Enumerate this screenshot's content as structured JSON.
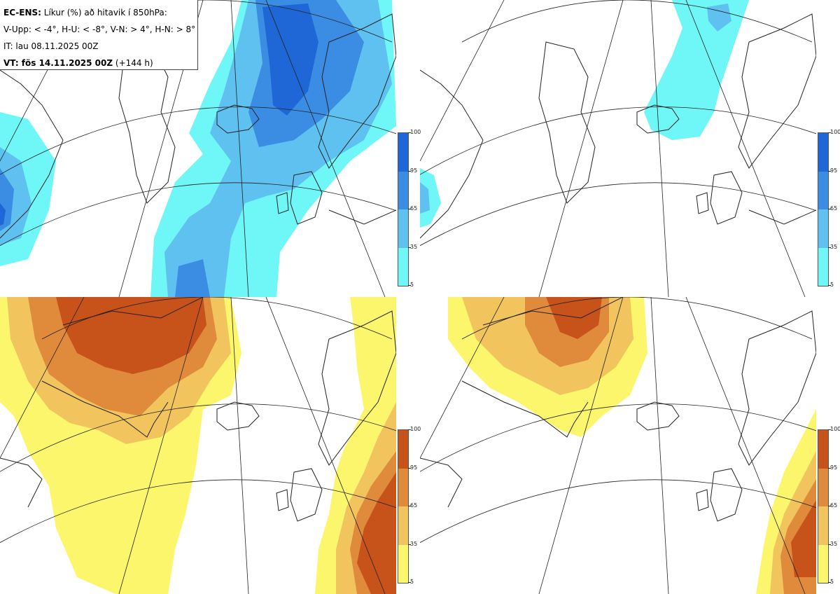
{
  "header": {
    "model": "EC-ENS:",
    "title_rest": "Líkur (%) að hitavik í 850hPa:",
    "legend_line": "V-Upp: < -4°, H-U: < -8°, V-N: > 4°, H-N: > 8°",
    "it_line": "IT: lau 08.11.2025 00Z",
    "vt_label": "VT: fös 14.11.2025 00Z",
    "vt_lead": "(+144 h)"
  },
  "colorbar": {
    "ticks": [
      "100",
      "95",
      "65",
      "35",
      "5"
    ],
    "cold_colors": [
      "#1f66d6",
      "#3b8de3",
      "#5fc1ef",
      "#6ff7f7"
    ],
    "warm_colors": [
      "#c7531b",
      "#e08b3c",
      "#f2c45d",
      "#fbf66b"
    ]
  },
  "panels": [
    {
      "id": "top-left",
      "quantity": "V-Upp",
      "threshold": "< -4°"
    },
    {
      "id": "top-right",
      "quantity": "H-U",
      "threshold": "< -8°"
    },
    {
      "id": "bottom-left",
      "quantity": "V-N",
      "threshold": "> 4°"
    },
    {
      "id": "bottom-right",
      "quantity": "H-N",
      "threshold": "> 8°"
    }
  ]
}
